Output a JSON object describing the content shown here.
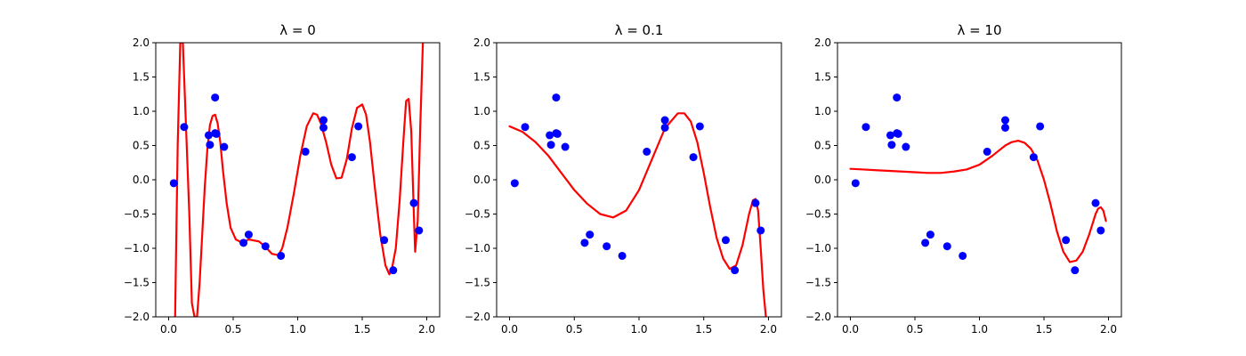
{
  "chart_data": [
    {
      "type": "scatter",
      "title": "λ = 0",
      "xlim": [
        -0.1,
        2.1
      ],
      "ylim": [
        -2.0,
        2.0
      ],
      "xticks": [
        0.0,
        0.5,
        1.0,
        1.5,
        2.0
      ],
      "xtick_labels": [
        "0.0",
        "0.5",
        "1.0",
        "1.5",
        "2.0"
      ],
      "yticks": [
        -2.0,
        -1.5,
        -1.0,
        -0.5,
        0.0,
        0.5,
        1.0,
        1.5,
        2.0
      ],
      "ytick_labels": [
        "−2.0",
        "−1.5",
        "−1.0",
        "−0.5",
        "0.0",
        "0.5",
        "1.0",
        "1.5",
        "2.0"
      ],
      "grid": false,
      "colors": {
        "points": "#0000ff",
        "curve": "#ff0000"
      },
      "series": [
        {
          "kind": "points",
          "x": [
            0.04,
            0.12,
            0.31,
            0.32,
            0.36,
            0.37,
            0.36,
            0.43,
            0.58,
            0.62,
            0.75,
            0.87,
            1.06,
            1.2,
            1.2,
            1.42,
            1.47,
            1.67,
            1.74,
            1.9,
            1.94
          ],
          "y": [
            -0.05,
            0.77,
            0.65,
            0.51,
            1.2,
            0.67,
            0.68,
            0.48,
            -0.92,
            -0.8,
            -0.97,
            -1.11,
            0.41,
            0.76,
            0.87,
            0.33,
            0.78,
            -0.88,
            -1.32,
            -0.34,
            -0.74
          ]
        },
        {
          "kind": "line",
          "x": [
            0.05,
            0.07,
            0.09,
            0.11,
            0.13,
            0.16,
            0.18,
            0.2,
            0.22,
            0.24,
            0.26,
            0.28,
            0.3,
            0.32,
            0.34,
            0.36,
            0.38,
            0.4,
            0.42,
            0.45,
            0.48,
            0.52,
            0.57,
            0.62,
            0.7,
            0.75,
            0.8,
            0.85,
            0.88,
            0.92,
            0.97,
            1.02,
            1.07,
            1.12,
            1.15,
            1.18,
            1.22,
            1.26,
            1.3,
            1.34,
            1.38,
            1.42,
            1.46,
            1.5,
            1.53,
            1.56,
            1.6,
            1.64,
            1.68,
            1.71,
            1.73,
            1.76,
            1.79,
            1.82,
            1.84,
            1.86,
            1.88,
            1.9,
            1.91,
            1.93,
            1.95,
            1.97
          ],
          "y": [
            -2.0,
            0.5,
            2.0,
            2.0,
            1.0,
            -0.5,
            -1.8,
            -2.0,
            -2.0,
            -1.5,
            -0.8,
            -0.1,
            0.45,
            0.8,
            0.93,
            0.95,
            0.82,
            0.55,
            0.15,
            -0.35,
            -0.7,
            -0.87,
            -0.92,
            -0.87,
            -0.9,
            -0.98,
            -1.08,
            -1.1,
            -1.0,
            -0.7,
            -0.2,
            0.35,
            0.78,
            0.97,
            0.95,
            0.82,
            0.55,
            0.22,
            0.02,
            0.03,
            0.3,
            0.75,
            1.05,
            1.1,
            0.95,
            0.55,
            -0.15,
            -0.8,
            -1.25,
            -1.38,
            -1.3,
            -1.0,
            -0.3,
            0.6,
            1.15,
            1.18,
            0.7,
            -0.5,
            -1.05,
            -0.6,
            0.8,
            2.0
          ]
        }
      ]
    },
    {
      "type": "scatter",
      "title": "λ = 0.1",
      "xlim": [
        -0.1,
        2.1
      ],
      "ylim": [
        -2.0,
        2.0
      ],
      "xticks": [
        0.0,
        0.5,
        1.0,
        1.5,
        2.0
      ],
      "xtick_labels": [
        "0.0",
        "0.5",
        "1.0",
        "1.5",
        "2.0"
      ],
      "yticks": [
        -2.0,
        -1.5,
        -1.0,
        -0.5,
        0.0,
        0.5,
        1.0,
        1.5,
        2.0
      ],
      "ytick_labels": [
        "−2.0",
        "−1.5",
        "−1.0",
        "−0.5",
        "0.0",
        "0.5",
        "1.0",
        "1.5",
        "2.0"
      ],
      "grid": false,
      "colors": {
        "points": "#0000ff",
        "curve": "#ff0000"
      },
      "series": [
        {
          "kind": "points",
          "x": [
            0.04,
            0.12,
            0.31,
            0.32,
            0.36,
            0.37,
            0.36,
            0.43,
            0.58,
            0.62,
            0.75,
            0.87,
            1.06,
            1.2,
            1.2,
            1.42,
            1.47,
            1.67,
            1.74,
            1.9,
            1.94
          ],
          "y": [
            -0.05,
            0.77,
            0.65,
            0.51,
            1.2,
            0.67,
            0.68,
            0.48,
            -0.92,
            -0.8,
            -0.97,
            -1.11,
            0.41,
            0.76,
            0.87,
            0.33,
            0.78,
            -0.88,
            -1.32,
            -0.34,
            -0.74
          ]
        },
        {
          "kind": "line",
          "x": [
            0.0,
            0.1,
            0.2,
            0.3,
            0.4,
            0.5,
            0.6,
            0.7,
            0.8,
            0.9,
            1.0,
            1.1,
            1.2,
            1.3,
            1.35,
            1.4,
            1.45,
            1.5,
            1.55,
            1.6,
            1.65,
            1.7,
            1.75,
            1.8,
            1.85,
            1.88,
            1.9,
            1.92,
            1.94,
            1.96,
            1.98
          ],
          "y": [
            0.78,
            0.7,
            0.55,
            0.35,
            0.1,
            -0.15,
            -0.35,
            -0.5,
            -0.55,
            -0.45,
            -0.15,
            0.3,
            0.75,
            0.97,
            0.97,
            0.85,
            0.55,
            0.1,
            -0.4,
            -0.85,
            -1.15,
            -1.3,
            -1.25,
            -0.95,
            -0.5,
            -0.3,
            -0.28,
            -0.45,
            -1.0,
            -1.6,
            -2.0
          ]
        }
      ]
    },
    {
      "type": "scatter",
      "title": "λ = 10",
      "xlim": [
        -0.1,
        2.1
      ],
      "ylim": [
        -2.0,
        2.0
      ],
      "xticks": [
        0.0,
        0.5,
        1.0,
        1.5,
        2.0
      ],
      "xtick_labels": [
        "0.0",
        "0.5",
        "1.0",
        "1.5",
        "2.0"
      ],
      "yticks": [
        -2.0,
        -1.5,
        -1.0,
        -0.5,
        0.0,
        0.5,
        1.0,
        1.5,
        2.0
      ],
      "ytick_labels": [
        "−2.0",
        "−1.5",
        "−1.0",
        "−0.5",
        "0.0",
        "0.5",
        "1.0",
        "1.5",
        "2.0"
      ],
      "grid": false,
      "colors": {
        "points": "#0000ff",
        "curve": "#ff0000"
      },
      "series": [
        {
          "kind": "points",
          "x": [
            0.04,
            0.12,
            0.31,
            0.32,
            0.36,
            0.37,
            0.36,
            0.43,
            0.58,
            0.62,
            0.75,
            0.87,
            1.06,
            1.2,
            1.2,
            1.42,
            1.47,
            1.67,
            1.74,
            1.9,
            1.94
          ],
          "y": [
            -0.05,
            0.77,
            0.65,
            0.51,
            1.2,
            0.67,
            0.68,
            0.48,
            -0.92,
            -0.8,
            -0.97,
            -1.11,
            0.41,
            0.76,
            0.87,
            0.33,
            0.78,
            -0.88,
            -1.32,
            -0.34,
            -0.74
          ]
        },
        {
          "kind": "line",
          "x": [
            0.0,
            0.1,
            0.2,
            0.3,
            0.4,
            0.5,
            0.6,
            0.7,
            0.8,
            0.9,
            1.0,
            1.1,
            1.2,
            1.25,
            1.3,
            1.35,
            1.4,
            1.45,
            1.5,
            1.55,
            1.6,
            1.65,
            1.7,
            1.75,
            1.8,
            1.85,
            1.88,
            1.9,
            1.92,
            1.94,
            1.96,
            1.98
          ],
          "y": [
            0.16,
            0.15,
            0.14,
            0.13,
            0.12,
            0.11,
            0.1,
            0.1,
            0.12,
            0.15,
            0.22,
            0.35,
            0.5,
            0.55,
            0.57,
            0.54,
            0.45,
            0.28,
            0.0,
            -0.35,
            -0.75,
            -1.05,
            -1.2,
            -1.18,
            -1.05,
            -0.8,
            -0.62,
            -0.5,
            -0.42,
            -0.4,
            -0.45,
            -0.6
          ]
        }
      ]
    }
  ]
}
